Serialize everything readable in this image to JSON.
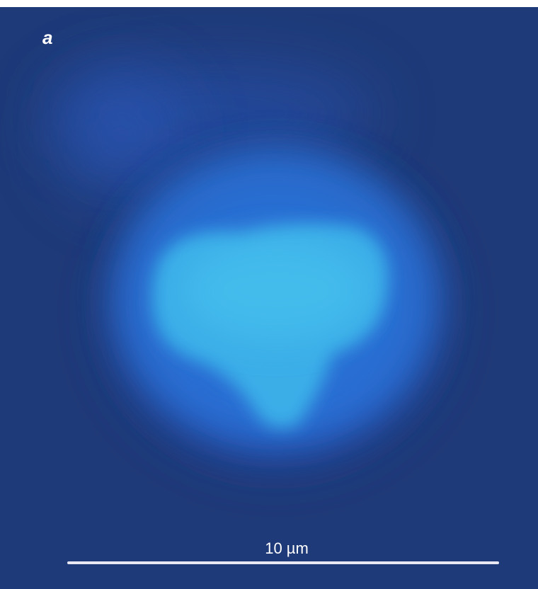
{
  "panel_label": "a",
  "scale_bar": {
    "label": "10 µm"
  }
}
